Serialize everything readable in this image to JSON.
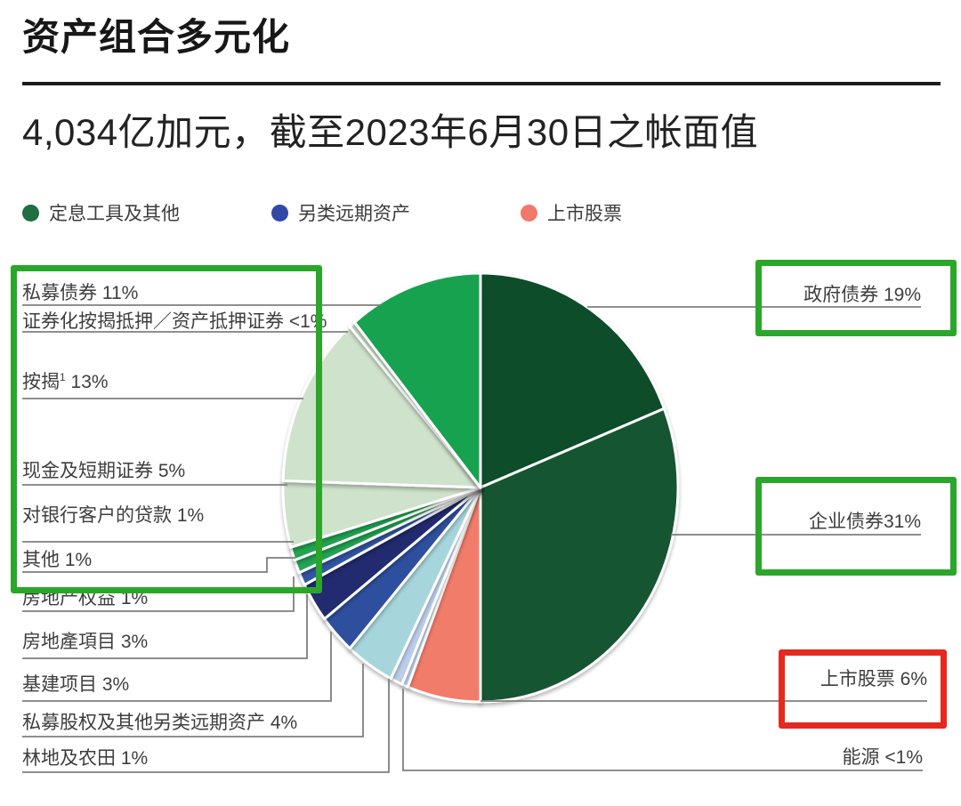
{
  "page": {
    "title": "资产组合多元化",
    "subtitle": "4,034亿加元，截至2023年6月30日之帐面值"
  },
  "legend": [
    {
      "id": "fixed-income-and-other",
      "label": "定息工具及其他",
      "color": "#1E6F42"
    },
    {
      "id": "alternative-long-term-assets",
      "label": "另类远期资产",
      "color": "#3148A6"
    },
    {
      "id": "public-equities",
      "label": "上市股票",
      "color": "#F0796B"
    }
  ],
  "chart_data": {
    "type": "pie",
    "title": "资产组合多元化",
    "subtitle": "4,034亿加元，截至2023年6月30日之帐面值",
    "unit": "percent of portfolio book value",
    "start_angle_deg": 0,
    "direction": "clockwise",
    "legend_position": "top",
    "slices": [
      {
        "id": "gov-bonds",
        "label": "政府债券",
        "value": 19,
        "value_text": "19%",
        "tight": false,
        "color": "#114E2B",
        "group": "定息工具及其他"
      },
      {
        "id": "corp-bonds",
        "label": "企业债券",
        "value": 31,
        "value_text": "31%",
        "tight": true,
        "color": "#165531",
        "group": "定息工具及其他"
      },
      {
        "id": "public-equities",
        "label": "上市股票",
        "value": 6,
        "value_text": "6%",
        "tight": false,
        "color": "#F27C6B",
        "group": "上市股票"
      },
      {
        "id": "energy",
        "label": "能源",
        "value": 0.5,
        "value_text": "<1%",
        "tight": false,
        "color": "#BACDE9",
        "group": "另类远期资产"
      },
      {
        "id": "timberland-farmland",
        "label": "林地及农田",
        "value": 1,
        "value_text": "1%",
        "tight": false,
        "color": "#BACDE9",
        "group": "另类远期资产"
      },
      {
        "id": "private-equity-other-alt",
        "label": "私募股权及其他另类远期资产",
        "value": 4,
        "value_text": "4%",
        "tight": false,
        "color": "#A6D6DB",
        "group": "另类远期资产"
      },
      {
        "id": "infrastructure",
        "label": "基建项目",
        "value": 3,
        "value_text": "3%",
        "tight": false,
        "color": "#2F4F9E",
        "group": "另类远期资产"
      },
      {
        "id": "real-estate-projects",
        "label": "房地產項目",
        "value": 3,
        "value_text": "3%",
        "tight": false,
        "color": "#202A6F",
        "group": "另类远期资产"
      },
      {
        "id": "real-estate-equity",
        "label": "房地产权益",
        "value": 1,
        "value_text": "1%",
        "tight": false,
        "color": "#3254A3",
        "group": "另类远期资产"
      },
      {
        "id": "other",
        "label": "其他",
        "value": 1,
        "value_text": "1%",
        "tight": false,
        "color": "#22A452",
        "group": "定息工具及其他"
      },
      {
        "id": "bank-client-loans",
        "label": "对银行客户的贷款",
        "value": 1,
        "value_text": "1%",
        "tight": false,
        "color": "#22A452",
        "group": "定息工具及其他"
      },
      {
        "id": "cash-short-term",
        "label": "现金及短期证券",
        "value": 5,
        "value_text": "5%",
        "tight": false,
        "color": "#CFE2CB",
        "group": "定息工具及其他"
      },
      {
        "id": "mortgages",
        "label": "按揭",
        "footnote_marker": "1",
        "value": 13,
        "value_text": "13%",
        "tight": false,
        "color": "#CFE2CB",
        "group": "定息工具及其他"
      },
      {
        "id": "securitized-mbs-abs",
        "label": "证券化按揭抵押／资产抵押证券",
        "value": 0.5,
        "value_text": "<1%",
        "tight": false,
        "color": "#BEDCC2",
        "group": "定息工具及其他"
      },
      {
        "id": "private-debt",
        "label": "私募债券",
        "value": 11,
        "value_text": "11%",
        "tight": false,
        "color": "#17A24F",
        "group": "定息工具及其他"
      }
    ]
  },
  "annotations": [
    {
      "id": "highlight-box-private-group",
      "shape": "rect",
      "color": "#2AA72A"
    },
    {
      "id": "highlight-box-gov-bonds",
      "shape": "rect",
      "color": "#2AA72A"
    },
    {
      "id": "highlight-box-corp-bonds",
      "shape": "rect",
      "color": "#2AA72A"
    },
    {
      "id": "highlight-box-public-equities",
      "shape": "rect",
      "color": "#E4291D"
    }
  ]
}
